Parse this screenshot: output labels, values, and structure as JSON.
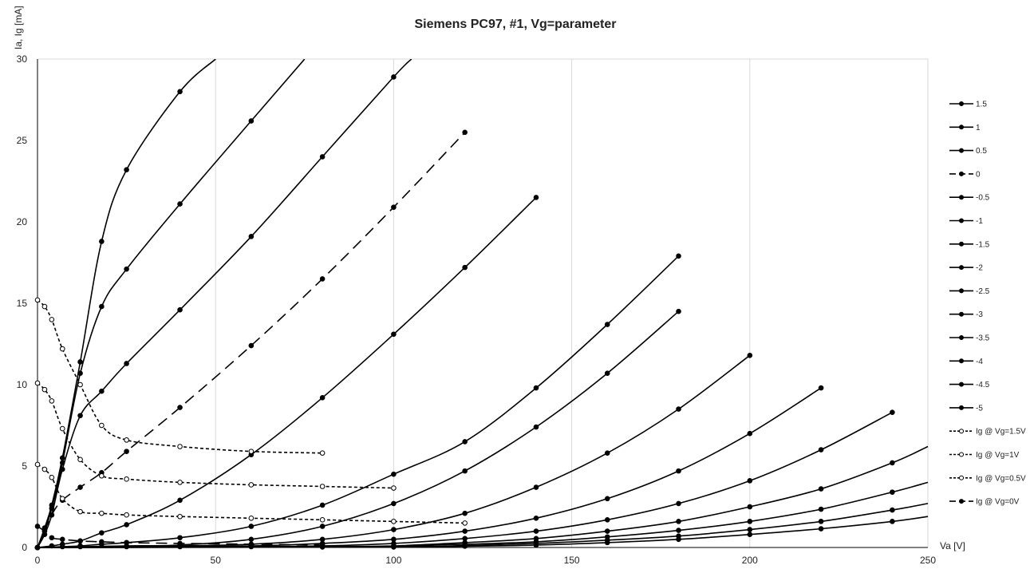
{
  "chart_data": {
    "type": "line",
    "title": "Siemens PC97, #1, Vg=parameter",
    "xlabel": "Va [V]",
    "ylabel": "Ia, Ig [mA]",
    "xlim": [
      0,
      250
    ],
    "ylim": [
      0,
      30
    ],
    "xticks": [
      0,
      50,
      100,
      150,
      200,
      250
    ],
    "yticks": [
      0,
      5,
      10,
      15,
      20,
      25,
      30
    ],
    "grid": "vertical",
    "legend": "right",
    "series": [
      {
        "name": "1.5",
        "style": "solid",
        "marker": "filled",
        "x": [
          0,
          2,
          4,
          7,
          12,
          18,
          25,
          40,
          50
        ],
        "y": [
          0,
          1.2,
          2.6,
          5.5,
          11.4,
          18.8,
          23.2,
          28.0,
          30.0
        ]
      },
      {
        "name": "1",
        "style": "solid",
        "marker": "filled",
        "x": [
          0,
          2,
          4,
          7,
          12,
          18,
          25,
          40,
          60,
          75
        ],
        "y": [
          0,
          1.0,
          2.4,
          5.2,
          10.7,
          14.8,
          17.1,
          21.1,
          26.2,
          30.0
        ]
      },
      {
        "name": "0.5",
        "style": "solid",
        "marker": "filled",
        "x": [
          0,
          2,
          4,
          7,
          12,
          18,
          25,
          40,
          60,
          80,
          100,
          105
        ],
        "y": [
          0,
          0.8,
          2.0,
          4.8,
          8.1,
          9.6,
          11.3,
          14.6,
          19.1,
          24.0,
          28.9,
          30.0
        ]
      },
      {
        "name": "0",
        "style": "dashed",
        "marker": "filled",
        "x": [
          0,
          4,
          7,
          12,
          18,
          25,
          40,
          60,
          80,
          100,
          120
        ],
        "y": [
          0,
          2.0,
          2.9,
          3.7,
          4.6,
          5.9,
          8.6,
          12.4,
          16.5,
          20.9,
          25.5
        ]
      },
      {
        "name": "-0.5",
        "style": "solid",
        "marker": "filled",
        "x": [
          0,
          4,
          7,
          12,
          18,
          25,
          40,
          60,
          80,
          100,
          120,
          140
        ],
        "y": [
          0,
          0.1,
          0.2,
          0.4,
          0.9,
          1.4,
          2.9,
          5.7,
          9.2,
          13.1,
          17.2,
          21.5
        ]
      },
      {
        "name": "-1",
        "style": "solid",
        "marker": "filled",
        "x": [
          0,
          7,
          12,
          18,
          25,
          40,
          60,
          80,
          100,
          120,
          140,
          160,
          180
        ],
        "y": [
          0,
          0.05,
          0.1,
          0.2,
          0.3,
          0.6,
          1.3,
          2.6,
          4.5,
          6.5,
          9.8,
          13.7,
          17.9
        ]
      },
      {
        "name": "-1.5",
        "style": "solid",
        "marker": "filled",
        "x": [
          0,
          12,
          25,
          40,
          60,
          80,
          100,
          120,
          140,
          160,
          180
        ],
        "y": [
          0,
          0.05,
          0.1,
          0.15,
          0.5,
          1.3,
          2.7,
          4.7,
          7.4,
          10.7,
          14.5
        ]
      },
      {
        "name": "-2",
        "style": "solid",
        "marker": "filled",
        "x": [
          0,
          25,
          40,
          60,
          80,
          100,
          120,
          140,
          160,
          180,
          200
        ],
        "y": [
          0,
          0.05,
          0.1,
          0.2,
          0.5,
          1.1,
          2.1,
          3.7,
          5.8,
          8.5,
          11.8
        ]
      },
      {
        "name": "-2.5",
        "style": "solid",
        "marker": "filled",
        "x": [
          0,
          40,
          60,
          80,
          100,
          120,
          140,
          160,
          180,
          200,
          220
        ],
        "y": [
          0,
          0.05,
          0.1,
          0.25,
          0.5,
          1.0,
          1.8,
          3.0,
          4.7,
          7.0,
          9.8
        ]
      },
      {
        "name": "-3",
        "style": "solid",
        "marker": "filled",
        "x": [
          0,
          60,
          80,
          100,
          120,
          140,
          160,
          180,
          200,
          220,
          240
        ],
        "y": [
          0,
          0.05,
          0.1,
          0.25,
          0.55,
          1.0,
          1.7,
          2.7,
          4.1,
          6.0,
          8.3
        ]
      },
      {
        "name": "-3.5",
        "style": "solid",
        "marker": "filled",
        "x": [
          0,
          80,
          100,
          120,
          140,
          160,
          180,
          200,
          220,
          240,
          250
        ],
        "y": [
          0,
          0.05,
          0.1,
          0.3,
          0.55,
          1.0,
          1.6,
          2.5,
          3.6,
          5.2,
          6.2
        ]
      },
      {
        "name": "-4",
        "style": "solid",
        "marker": "filled",
        "x": [
          0,
          80,
          100,
          120,
          140,
          160,
          180,
          200,
          220,
          240,
          250
        ],
        "y": [
          0,
          0.03,
          0.08,
          0.2,
          0.35,
          0.65,
          1.05,
          1.6,
          2.35,
          3.4,
          4.0
        ]
      },
      {
        "name": "-4.5",
        "style": "solid",
        "marker": "filled",
        "x": [
          0,
          100,
          120,
          140,
          160,
          180,
          200,
          220,
          240,
          250
        ],
        "y": [
          0,
          0.05,
          0.12,
          0.25,
          0.45,
          0.7,
          1.1,
          1.6,
          2.3,
          2.7
        ]
      },
      {
        "name": "-5",
        "style": "solid",
        "marker": "filled",
        "x": [
          0,
          100,
          120,
          140,
          160,
          180,
          200,
          220,
          240,
          250
        ],
        "y": [
          0,
          0.03,
          0.08,
          0.15,
          0.3,
          0.5,
          0.8,
          1.15,
          1.6,
          1.9
        ]
      },
      {
        "name": "Ig @ Vg=1.5V",
        "style": "dotted",
        "marker": "open",
        "x": [
          0,
          2,
          4,
          7,
          12,
          18,
          25,
          40,
          60,
          80
        ],
        "y": [
          15.2,
          14.8,
          14.0,
          12.2,
          10.0,
          7.5,
          6.6,
          6.2,
          5.9,
          5.8
        ]
      },
      {
        "name": "Ig @ Vg=1V",
        "style": "dotted",
        "marker": "open",
        "x": [
          0,
          2,
          4,
          7,
          12,
          18,
          25,
          40,
          60,
          80,
          100
        ],
        "y": [
          10.1,
          9.7,
          9.0,
          7.3,
          5.4,
          4.4,
          4.2,
          4.0,
          3.85,
          3.75,
          3.65
        ]
      },
      {
        "name": "Ig @ Vg=0.5V",
        "style": "dotted",
        "marker": "open",
        "x": [
          0,
          2,
          4,
          7,
          12,
          18,
          25,
          40,
          60,
          80,
          100,
          120
        ],
        "y": [
          5.1,
          4.8,
          4.3,
          3.0,
          2.2,
          2.1,
          2.0,
          1.9,
          1.8,
          1.7,
          1.6,
          1.5
        ]
      },
      {
        "name": "Ig @ Vg=0V",
        "style": "dashed",
        "marker": "filled",
        "x": [
          0,
          2,
          4,
          7,
          12,
          18,
          25,
          40,
          60,
          80
        ],
        "y": [
          1.3,
          1.0,
          0.6,
          0.5,
          0.4,
          0.35,
          0.3,
          0.25,
          0.2,
          0.15
        ]
      }
    ]
  },
  "colors": {
    "line": "#000000",
    "grid": "#d9d9d9",
    "text": "#222222"
  }
}
